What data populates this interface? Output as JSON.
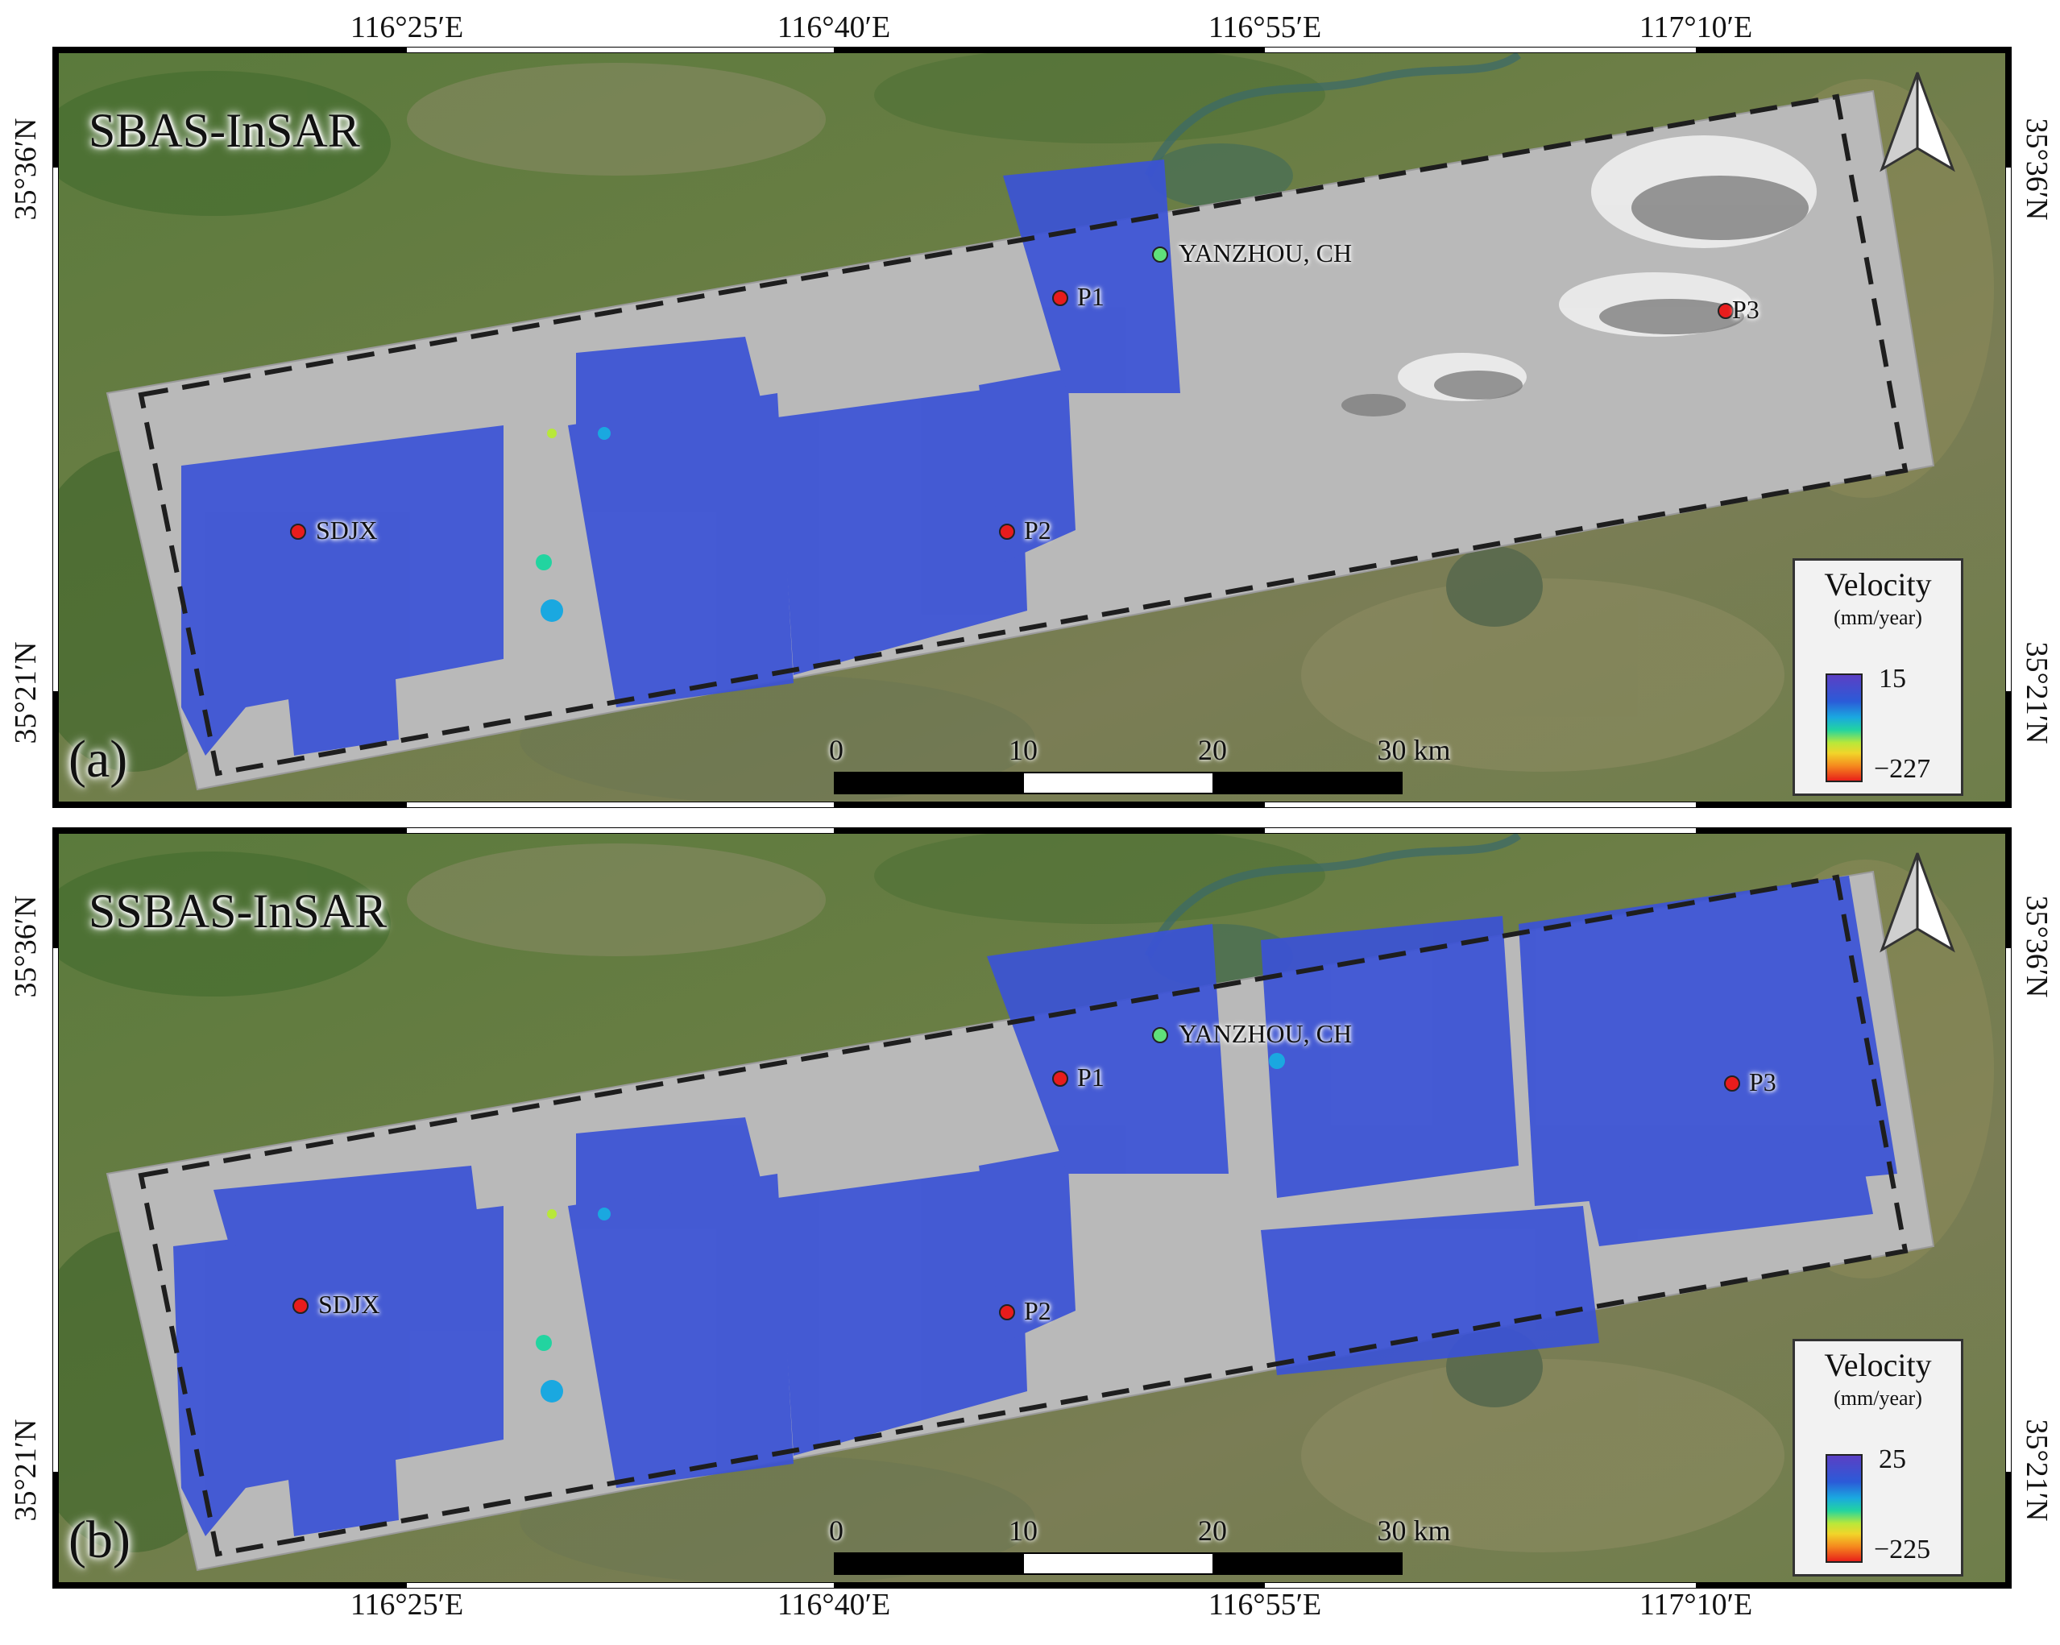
{
  "figure": {
    "longitude_labels": [
      "116°25′E",
      "116°40′E",
      "116°55′E",
      "117°10′E"
    ],
    "latitude_labels": [
      "35°36′N",
      "35°21′N"
    ]
  },
  "panels": [
    {
      "id": "a",
      "title": "SBAS-InSAR",
      "label": "(a)",
      "legend": {
        "title": "Velocity",
        "units": "(mm/year)",
        "max": "15",
        "min": "−227"
      },
      "points": [
        {
          "name": "YANZHOU, CH",
          "color": "green"
        },
        {
          "name": "P1",
          "color": "red"
        },
        {
          "name": "P2",
          "color": "red"
        },
        {
          "name": "P3",
          "color": "red"
        },
        {
          "name": "SDJX",
          "color": "red"
        }
      ],
      "scale": {
        "ticks": [
          "0",
          "10",
          "20",
          "30 km"
        ]
      }
    },
    {
      "id": "b",
      "title": "SSBAS-InSAR",
      "label": "(b)",
      "legend": {
        "title": "Velocity",
        "units": "(mm/year)",
        "max": "25",
        "min": "−225"
      },
      "points": [
        {
          "name": "YANZHOU, CH",
          "color": "green"
        },
        {
          "name": "P1",
          "color": "red"
        },
        {
          "name": "P2",
          "color": "red"
        },
        {
          "name": "P3",
          "color": "red"
        },
        {
          "name": "SDJX",
          "color": "red"
        }
      ],
      "scale": {
        "ticks": [
          "0",
          "10",
          "20",
          "30 km"
        ]
      }
    }
  ],
  "colors": {
    "satellite_green": "#4f6f34",
    "swath_gray": "#b9b9b9",
    "deformation_blue": "#3b52d6",
    "marker_red": "#e81c1c",
    "marker_green": "#5fe07a"
  }
}
